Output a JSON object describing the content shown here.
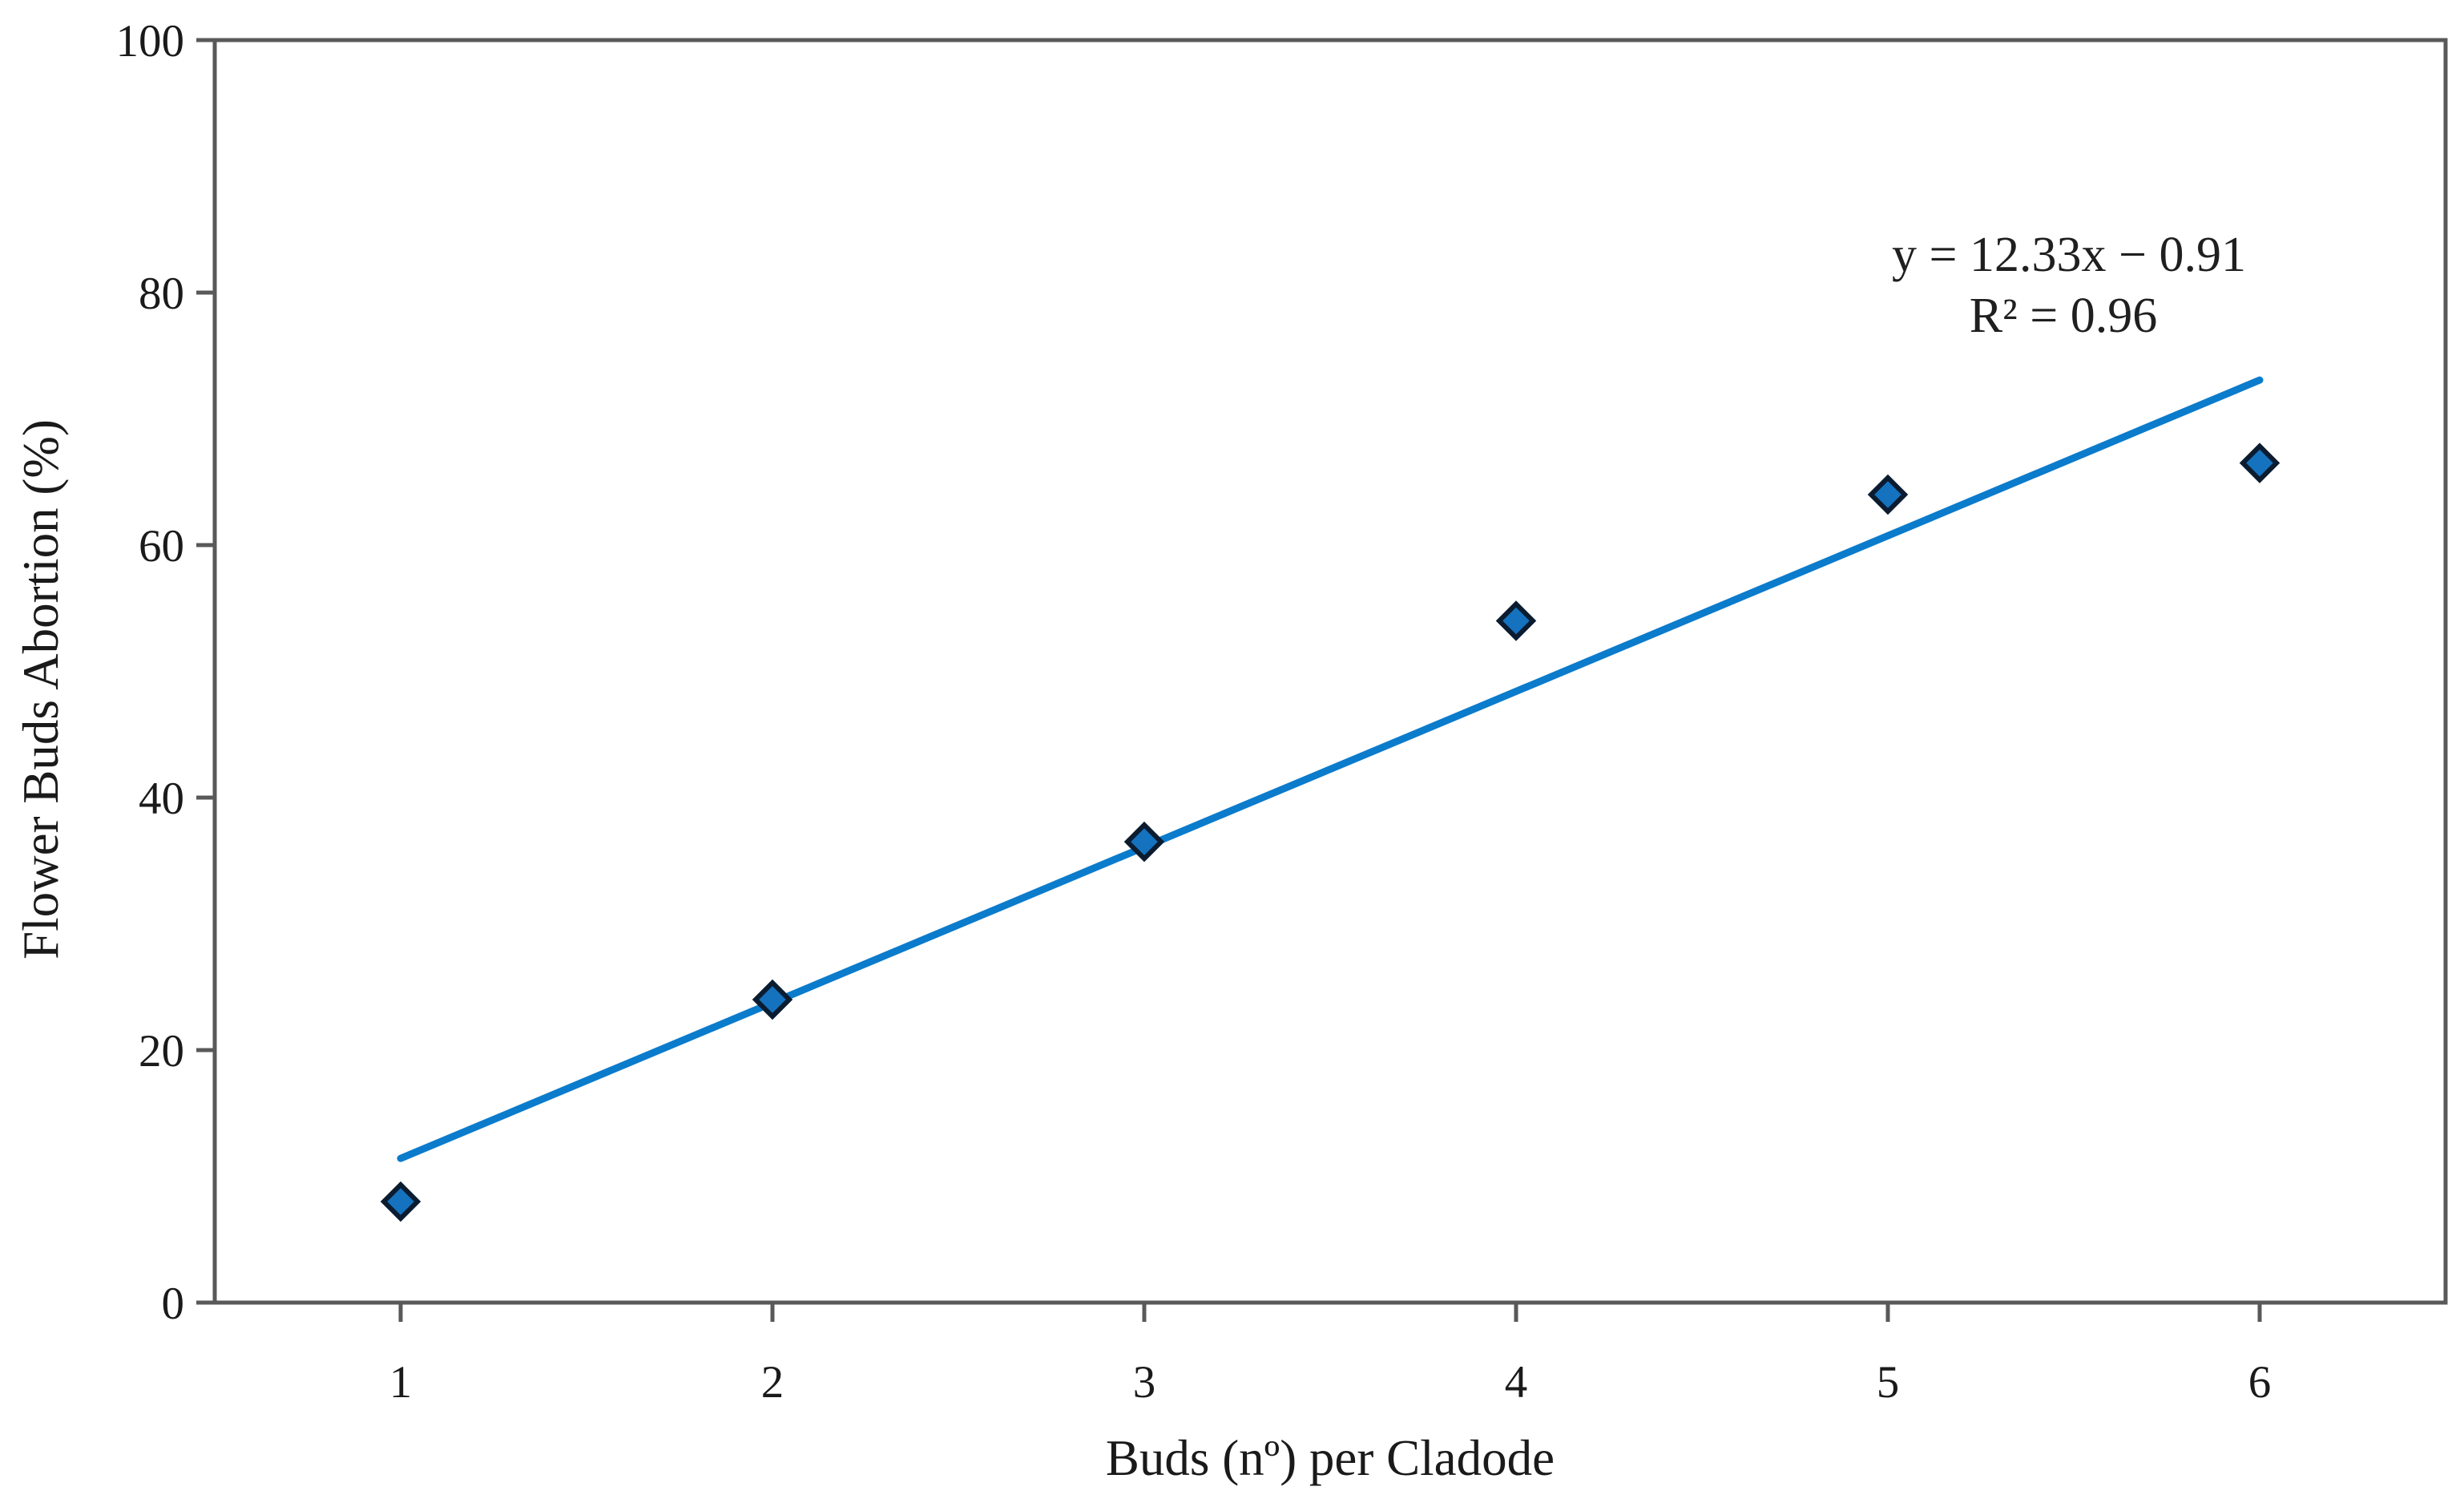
{
  "chart_data": {
    "type": "scatter",
    "title": "",
    "xlabel": "Buds (nº) per Cladode",
    "ylabel": "Flower Buds Abortion (%)",
    "x": [
      1,
      2,
      3,
      4,
      5,
      6
    ],
    "values": [
      8,
      24,
      36.5,
      54,
      64,
      66.5
    ],
    "xlim": [
      0.5,
      6.5
    ],
    "ylim": [
      0,
      100
    ],
    "x_ticks": [
      1,
      2,
      3,
      4,
      5,
      6
    ],
    "x_tick_labels": [
      "1",
      "2",
      "3",
      "4",
      "5",
      "6"
    ],
    "y_ticks": [
      0,
      20,
      40,
      60,
      80,
      100
    ],
    "y_tick_labels": [
      "0",
      "20",
      "40",
      "60",
      "80",
      "100"
    ],
    "grid": false,
    "legend": null,
    "trendline": {
      "slope": 12.33,
      "intercept": -0.91,
      "x_range": [
        1,
        6
      ],
      "equation_label": "y = 12.33x − 0.91",
      "r2_label": "R² = 0.96"
    },
    "marker": {
      "shape": "diamond",
      "fill": "#1572bf",
      "stroke": "#0b1c30"
    },
    "colors": {
      "trendline": "#0b7bcc",
      "axis_frame": "#595959",
      "text": "#1a1a1a",
      "background": "#ffffff"
    }
  }
}
